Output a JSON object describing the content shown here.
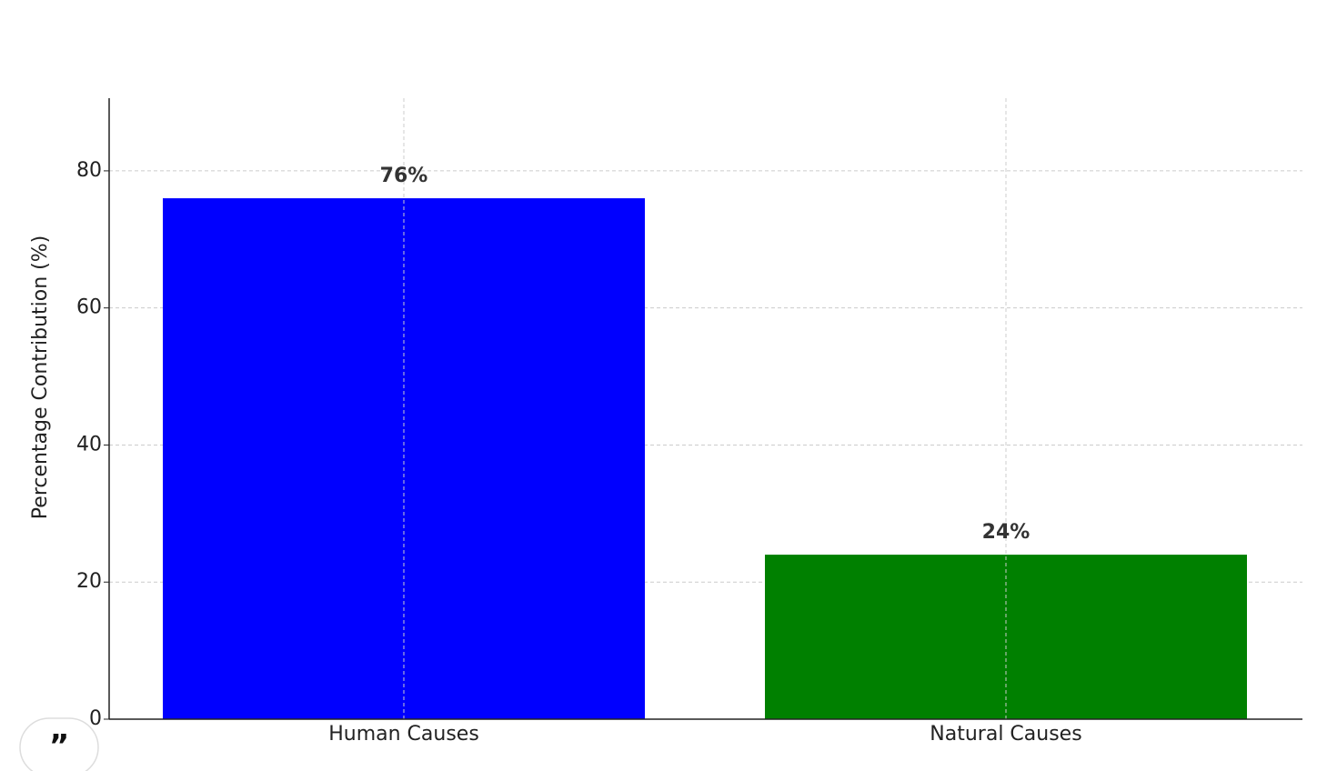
{
  "chart_data": {
    "type": "bar",
    "y_label": "Percentage Contribution (%)",
    "categories": [
      "Human Causes",
      "Natural Causes"
    ],
    "values": [
      76,
      24
    ],
    "value_labels": [
      "76%",
      "24%"
    ],
    "colors": [
      "#0000ff",
      "#008000"
    ],
    "ylim": [
      0,
      90.6
    ],
    "yticks": [
      0,
      20,
      40,
      60,
      80
    ],
    "grid": true
  }
}
